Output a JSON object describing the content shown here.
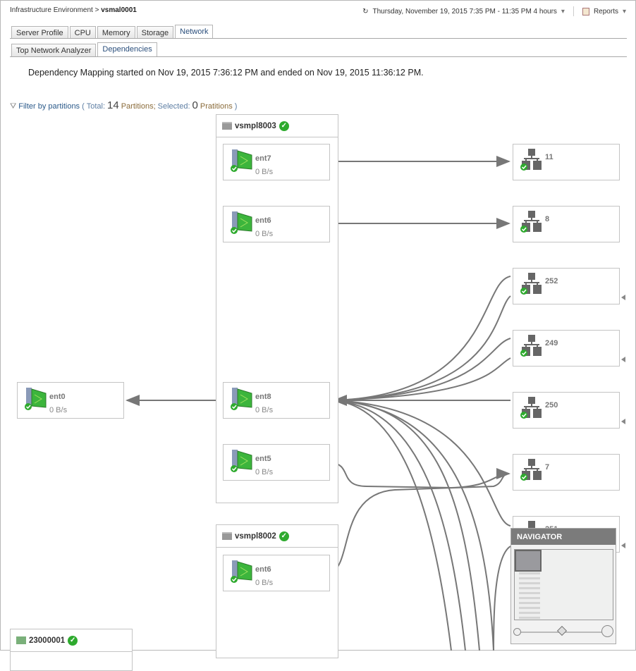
{
  "breadcrumb": {
    "root": "Infrastructure Environment",
    "current": "vsmal0001"
  },
  "timerange": {
    "label": "Thursday, November 19, 2015 7:35 PM - 11:35 PM 4 hours",
    "reports": "Reports"
  },
  "tabs": [
    {
      "label": "Server Profile"
    },
    {
      "label": "CPU"
    },
    {
      "label": "Memory"
    },
    {
      "label": "Storage"
    },
    {
      "label": "Network",
      "active": true
    }
  ],
  "subtabs": [
    {
      "label": "Top Network Analyzer"
    },
    {
      "label": "Dependencies",
      "active": true
    }
  ],
  "message": "Dependency Mapping started on Nov 19, 2015 7:36:12 PM and ended on Nov 19, 2015 11:36:12 PM.",
  "filter": {
    "link": "Filter by partitions",
    "open": "(",
    "total_label": "Total:",
    "total": "14",
    "partitions": "Partitions;",
    "selected_label": "Selected:",
    "selected": "0",
    "partitions2": "Pratitions",
    "close": ")"
  },
  "groups": [
    {
      "name": "vsmpl8003",
      "status": "ok",
      "adapters": [
        {
          "name": "ent7",
          "rate": "0 B/s"
        },
        {
          "name": "ent6",
          "rate": "0 B/s"
        },
        {
          "name": "ent8",
          "rate": "0 B/s"
        },
        {
          "name": "ent5",
          "rate": "0 B/s"
        }
      ]
    },
    {
      "name": "vsmpl8002",
      "status": "ok",
      "adapters": [
        {
          "name": "ent6",
          "rate": "0 B/s"
        }
      ]
    },
    {
      "name": "23000001",
      "status": "ok",
      "adapters": []
    }
  ],
  "external_adapter": {
    "name": "ent0",
    "rate": "0 B/s"
  },
  "networks": [
    {
      "name": "11"
    },
    {
      "name": "8"
    },
    {
      "name": "252"
    },
    {
      "name": "249"
    },
    {
      "name": "250"
    },
    {
      "name": "7"
    },
    {
      "name": "251"
    }
  ],
  "navigator": {
    "title": "NAVIGATOR"
  },
  "colors": {
    "edge": "#777777",
    "ok": "#2eaa2e",
    "nic": "#3cb53c",
    "nav_header": "#7b7b7b"
  }
}
